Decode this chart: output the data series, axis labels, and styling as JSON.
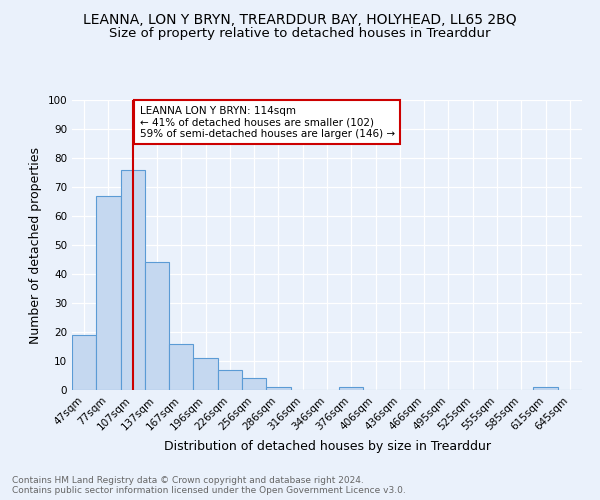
{
  "title": "LEANNA, LON Y BRYN, TREARDDUR BAY, HOLYHEAD, LL65 2BQ",
  "subtitle": "Size of property relative to detached houses in Trearddur",
  "xlabel": "Distribution of detached houses by size in Trearddur",
  "ylabel": "Number of detached properties",
  "categories": [
    "47sqm",
    "77sqm",
    "107sqm",
    "137sqm",
    "167sqm",
    "196sqm",
    "226sqm",
    "256sqm",
    "286sqm",
    "316sqm",
    "346sqm",
    "376sqm",
    "406sqm",
    "436sqm",
    "466sqm",
    "495sqm",
    "525sqm",
    "555sqm",
    "585sqm",
    "615sqm",
    "645sqm"
  ],
  "values": [
    19,
    67,
    76,
    44,
    16,
    11,
    7,
    4,
    1,
    0,
    0,
    1,
    0,
    0,
    0,
    0,
    0,
    0,
    0,
    1,
    0
  ],
  "bar_color": "#c5d8f0",
  "bar_edge_color": "#5b9bd5",
  "vline_x": 2,
  "vline_color": "#cc0000",
  "annotation_text": "LEANNA LON Y BRYN: 114sqm\n← 41% of detached houses are smaller (102)\n59% of semi-detached houses are larger (146) →",
  "annotation_box_color": "#ffffff",
  "annotation_box_edge": "#cc0000",
  "ylim": [
    0,
    100
  ],
  "yticks": [
    0,
    10,
    20,
    30,
    40,
    50,
    60,
    70,
    80,
    90,
    100
  ],
  "footer": "Contains HM Land Registry data © Crown copyright and database right 2024.\nContains public sector information licensed under the Open Government Licence v3.0.",
  "bg_color": "#eaf1fb",
  "grid_color": "#ffffff",
  "title_fontsize": 10,
  "subtitle_fontsize": 9.5,
  "axis_label_fontsize": 9,
  "tick_fontsize": 7.5,
  "footer_fontsize": 6.5
}
